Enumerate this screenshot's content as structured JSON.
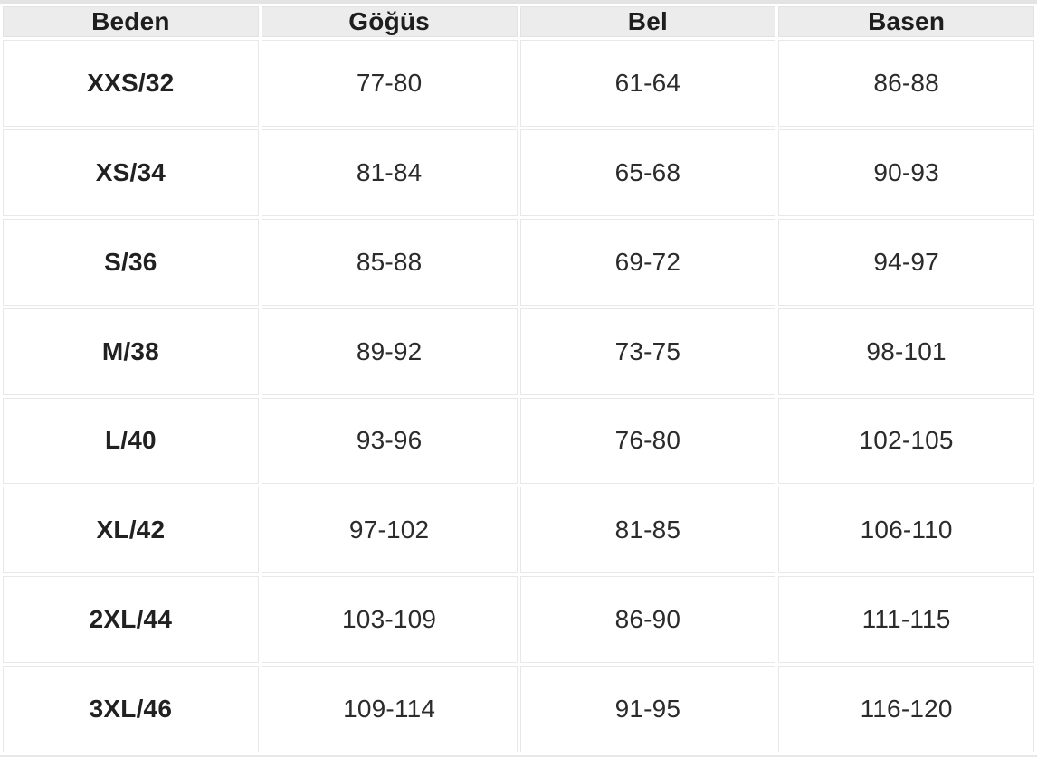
{
  "colors": {
    "header_bg": "#ececec",
    "cell_bg": "#ffffff",
    "grid_line": "#e8e8e8",
    "header_text": "#1e1e1e",
    "body_text": "#2b2b2b"
  },
  "table": {
    "headers": [
      {
        "id": "beden",
        "label": "Beden"
      },
      {
        "id": "gogus",
        "label": "Göğüs"
      },
      {
        "id": "bel",
        "label": "Bel"
      },
      {
        "id": "basen",
        "label": "Basen"
      }
    ],
    "rows": [
      {
        "beden": "XXS/32",
        "gogus": "77-80",
        "bel": "61-64",
        "basen": "86-88"
      },
      {
        "beden": "XS/34",
        "gogus": "81-84",
        "bel": "65-68",
        "basen": "90-93"
      },
      {
        "beden": "S/36",
        "gogus": "85-88",
        "bel": "69-72",
        "basen": "94-97"
      },
      {
        "beden": "M/38",
        "gogus": "89-92",
        "bel": "73-75",
        "basen": "98-101"
      },
      {
        "beden": "L/40",
        "gogus": "93-96",
        "bel": "76-80",
        "basen": "102-105"
      },
      {
        "beden": "XL/42",
        "gogus": "97-102",
        "bel": "81-85",
        "basen": "106-110"
      },
      {
        "beden": "2XL/44",
        "gogus": "103-109",
        "bel": "86-90",
        "basen": "111-115"
      },
      {
        "beden": "3XL/46",
        "gogus": "109-114",
        "bel": "91-95",
        "basen": "116-120"
      }
    ]
  }
}
